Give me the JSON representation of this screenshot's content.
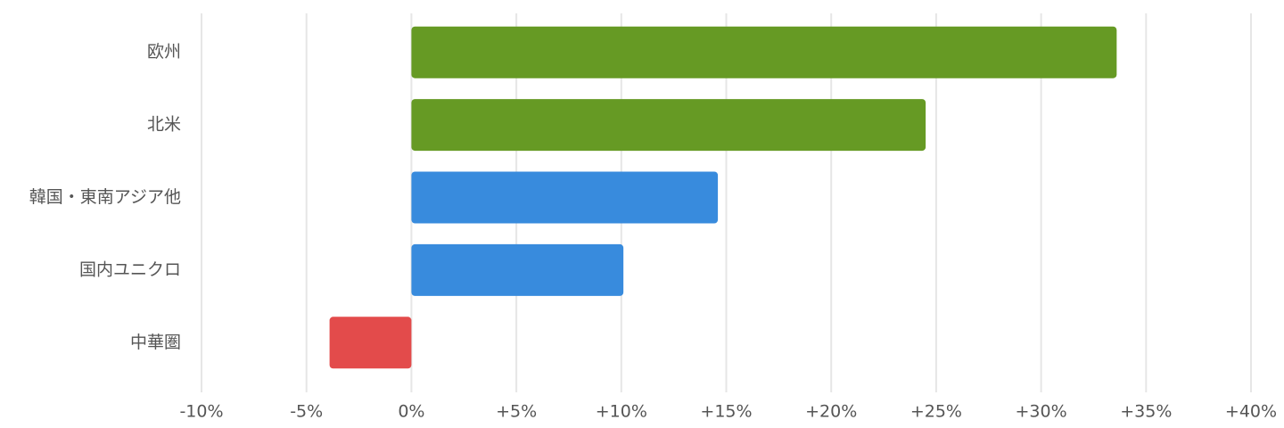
{
  "chart_data": {
    "type": "hbar",
    "categories": [
      "欧州",
      "北米",
      "韓国・東南アジア他",
      "国内ユニクロ",
      "中華圏"
    ],
    "values": [
      33.6,
      24.5,
      14.6,
      10.1,
      -3.9
    ],
    "colors": [
      "#669a24",
      "#669a24",
      "#388bdd",
      "#388bdd",
      "#e34b4b"
    ],
    "xlim": [
      -10,
      40
    ],
    "xticks": [
      {
        "value": -10,
        "label": "-10%"
      },
      {
        "value": -5,
        "label": "-5%"
      },
      {
        "value": 0,
        "label": "0%"
      },
      {
        "value": 5,
        "label": "+5%"
      },
      {
        "value": 10,
        "label": "+10%"
      },
      {
        "value": 15,
        "label": "+15%"
      },
      {
        "value": 20,
        "label": "+20%"
      },
      {
        "value": 25,
        "label": "+25%"
      },
      {
        "value": 30,
        "label": "+30%"
      },
      {
        "value": 35,
        "label": "+35%"
      },
      {
        "value": 40,
        "label": "+40%"
      }
    ],
    "grid": true
  }
}
